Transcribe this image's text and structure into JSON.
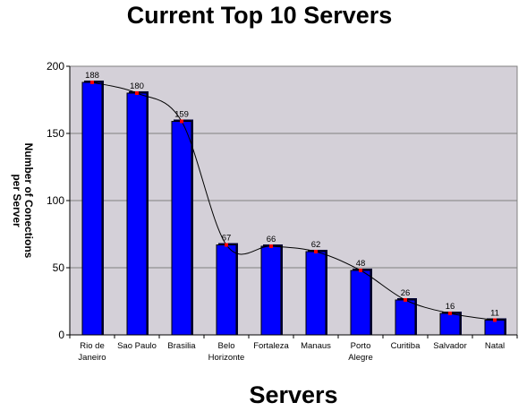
{
  "chart_data": {
    "type": "bar",
    "title": "Current Top 10 Servers",
    "xlabel": "Servers",
    "ylabel_lines": [
      "Number of Conections",
      "per Server"
    ],
    "ylim": [
      0,
      200
    ],
    "yticks": [
      "0",
      "50",
      "100",
      "150",
      "200"
    ],
    "grid": true,
    "legend": "none",
    "categories": [
      [
        "Rio de",
        "Janeiro"
      ],
      [
        "Sao Paulo"
      ],
      [
        "Brasilia"
      ],
      [
        "Belo",
        "Horizonte"
      ],
      [
        "Fortaleza"
      ],
      [
        "Manaus"
      ],
      [
        "Porto",
        "Alegre"
      ],
      [
        "Curitiba"
      ],
      [
        "Salvador"
      ],
      [
        "Natal"
      ]
    ],
    "values": [
      188,
      180,
      159,
      67,
      66,
      62,
      48,
      26,
      16,
      11
    ],
    "overlay_line": true,
    "colors": {
      "bar": "#0000ff",
      "bar_edge": "#000000",
      "plot_bg": "#d4d0d8",
      "grid": "#808080",
      "line": "#000000",
      "marker": "#ff0000"
    }
  }
}
